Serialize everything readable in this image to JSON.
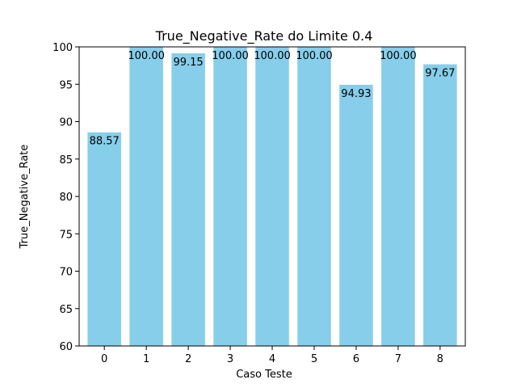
{
  "chart_data": {
    "type": "bar",
    "title": "True_Negative_Rate do Limite 0.4",
    "xlabel": "Caso Teste",
    "ylabel": "True_Negative_Rate",
    "categories": [
      "0",
      "1",
      "2",
      "3",
      "4",
      "5",
      "6",
      "7",
      "8"
    ],
    "values": [
      88.57,
      100.0,
      99.15,
      100.0,
      100.0,
      100.0,
      94.93,
      100.0,
      97.67
    ],
    "data_labels": [
      "88.57",
      "100.00",
      "99.15",
      "100.00",
      "100.00",
      "100.00",
      "94.93",
      "100.00",
      "97.67"
    ],
    "ylim": [
      60,
      100
    ],
    "yticks": [
      "60",
      "65",
      "70",
      "75",
      "80",
      "85",
      "90",
      "95",
      "100"
    ],
    "grid": false,
    "bar_color": "#87ceeb"
  }
}
